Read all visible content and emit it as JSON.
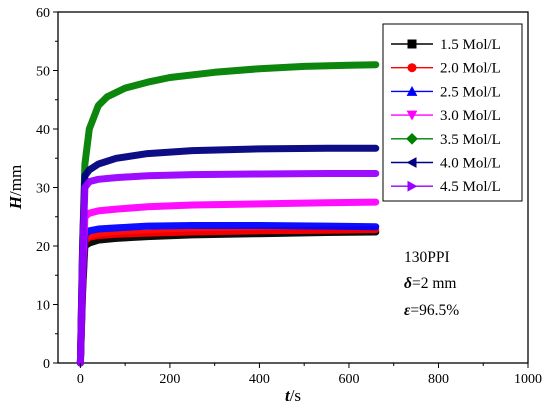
{
  "chart_data": {
    "type": "line",
    "xlim": [
      -50,
      1000
    ],
    "ylim": [
      0,
      60
    ],
    "x_ticks": [
      0,
      200,
      400,
      600,
      800,
      1000
    ],
    "y_ticks": [
      0,
      10,
      20,
      30,
      40,
      50,
      60
    ],
    "x_tick_labels": [
      "0",
      "200",
      "400",
      "600",
      "800",
      "1000"
    ],
    "y_tick_labels": [
      "0",
      "10",
      "20",
      "30",
      "40",
      "50",
      "60"
    ],
    "xlabel": {
      "var": "t",
      "unit": "/s"
    },
    "ylabel": {
      "var": "H",
      "unit": "/mm"
    },
    "grid": false,
    "legend_position": "top-right",
    "annotations": {
      "ppi": "130PPI",
      "delta_sym": "δ",
      "delta_val": "=2 mm",
      "eps_sym": "ε",
      "eps_val": "=96.5%"
    },
    "series": [
      {
        "name": "1.5 Mol/L",
        "color": "#000000",
        "marker": "square",
        "x": [
          0,
          5,
          10,
          20,
          40,
          80,
          150,
          250,
          400,
          550,
          660
        ],
        "y": [
          0,
          12,
          20,
          20.5,
          21,
          21.3,
          21.6,
          21.9,
          22.1,
          22.3,
          22.4
        ]
      },
      {
        "name": "2.0 Mol/L",
        "color": "#ff0000",
        "marker": "circle",
        "x": [
          0,
          5,
          10,
          20,
          40,
          80,
          150,
          250,
          400,
          550,
          660
        ],
        "y": [
          0,
          13,
          21,
          21.5,
          21.8,
          22,
          22.2,
          22.4,
          22.6,
          22.7,
          22.8
        ]
      },
      {
        "name": "2.5 Mol/L",
        "color": "#0000ff",
        "marker": "triangle-up",
        "x": [
          0,
          5,
          10,
          20,
          40,
          80,
          150,
          250,
          400,
          550,
          660
        ],
        "y": [
          0,
          14,
          22,
          22.6,
          22.9,
          23.1,
          23.4,
          23.5,
          23.5,
          23.4,
          23.3
        ]
      },
      {
        "name": "3.0 Mol/L",
        "color": "#ff00ff",
        "marker": "triangle-down",
        "x": [
          0,
          5,
          10,
          20,
          40,
          80,
          150,
          250,
          400,
          550,
          660
        ],
        "y": [
          0,
          16,
          25,
          25.6,
          26,
          26.3,
          26.7,
          27,
          27.2,
          27.4,
          27.5
        ]
      },
      {
        "name": "3.5 Mol/L",
        "color": "#008000",
        "marker": "diamond",
        "x": [
          0,
          5,
          10,
          20,
          40,
          60,
          100,
          150,
          200,
          300,
          400,
          500,
          600,
          660
        ],
        "y": [
          0,
          20,
          34,
          40,
          44,
          45.5,
          47,
          48,
          48.8,
          49.7,
          50.3,
          50.7,
          50.9,
          51
        ]
      },
      {
        "name": "4.0 Mol/L",
        "color": "#000080",
        "marker": "triangle-left",
        "x": [
          0,
          5,
          10,
          20,
          40,
          80,
          150,
          250,
          400,
          550,
          660
        ],
        "y": [
          0,
          20,
          32,
          33,
          34,
          35,
          35.8,
          36.3,
          36.6,
          36.7,
          36.7
        ]
      },
      {
        "name": "4.5 Mol/L",
        "color": "#9900ff",
        "marker": "triangle-right",
        "x": [
          0,
          5,
          10,
          20,
          40,
          80,
          150,
          250,
          400,
          550,
          660
        ],
        "y": [
          0,
          18,
          30,
          31,
          31.4,
          31.7,
          32,
          32.2,
          32.3,
          32.4,
          32.4
        ]
      }
    ]
  }
}
